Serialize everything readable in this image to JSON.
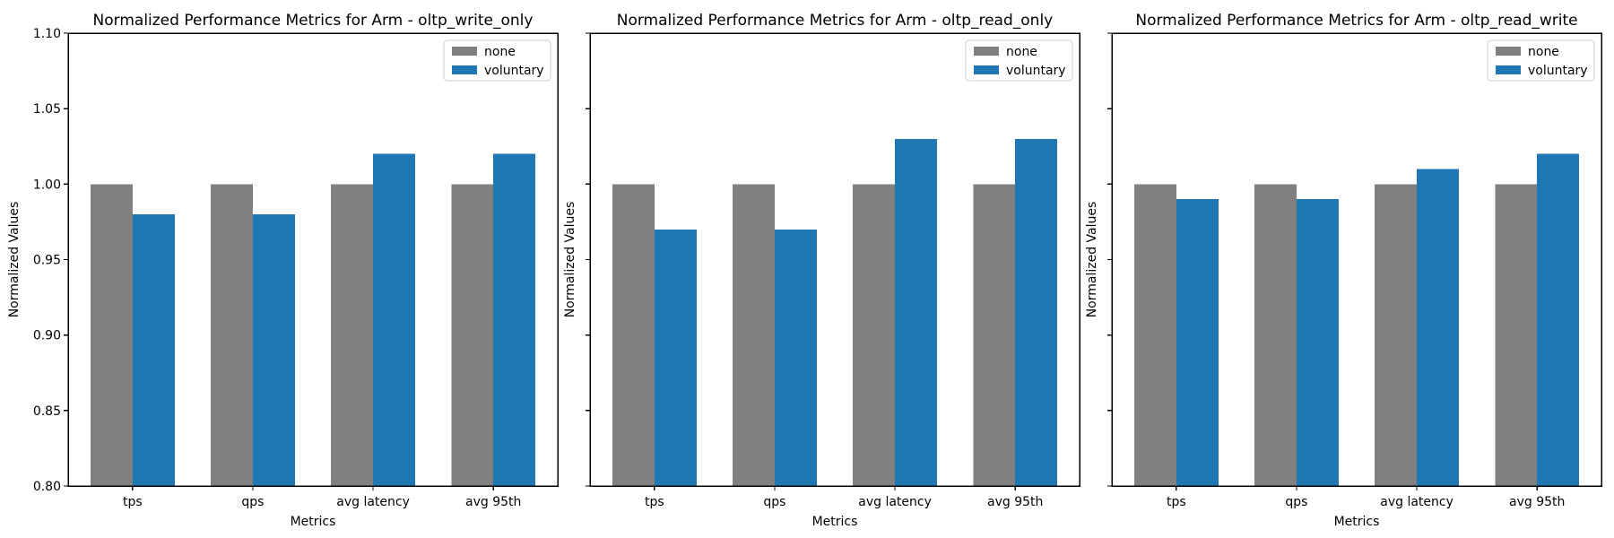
{
  "figure": {
    "background": "#ffffff",
    "text_color": "#000000",
    "axis_color": "#000000",
    "legend_border_color": "#cccccc"
  },
  "chart_data": [
    {
      "type": "bar",
      "title": "Normalized Performance Metrics for Arm - oltp_write_only",
      "xlabel": "Metrics",
      "ylabel": "Normalized Values",
      "categories": [
        "tps",
        "qps",
        "avg latency",
        "avg 95th"
      ],
      "series": [
        {
          "name": "none",
          "color": "#808080",
          "values": [
            1.0,
            1.0,
            1.0,
            1.0
          ]
        },
        {
          "name": "voluntary",
          "color": "#1f77b4",
          "values": [
            0.98,
            0.98,
            1.02,
            1.02
          ]
        }
      ],
      "ylim": [
        0.8,
        1.1
      ],
      "yticks": [
        0.8,
        0.85,
        0.9,
        0.95,
        1.0,
        1.05,
        1.1
      ],
      "ytick_labels_visible": true,
      "bar_width_fraction": 0.35,
      "legend_position": "upper right",
      "grid": false
    },
    {
      "type": "bar",
      "title": "Normalized Performance Metrics for Arm - oltp_read_only",
      "xlabel": "Metrics",
      "ylabel": "Normalized Values",
      "categories": [
        "tps",
        "qps",
        "avg latency",
        "avg 95th"
      ],
      "series": [
        {
          "name": "none",
          "color": "#808080",
          "values": [
            1.0,
            1.0,
            1.0,
            1.0
          ]
        },
        {
          "name": "voluntary",
          "color": "#1f77b4",
          "values": [
            0.97,
            0.97,
            1.03,
            1.03
          ]
        }
      ],
      "ylim": [
        0.8,
        1.1
      ],
      "yticks": [
        0.8,
        0.85,
        0.9,
        0.95,
        1.0,
        1.05,
        1.1
      ],
      "ytick_labels_visible": false,
      "bar_width_fraction": 0.35,
      "legend_position": "upper right",
      "grid": false
    },
    {
      "type": "bar",
      "title": "Normalized Performance Metrics for Arm - oltp_read_write",
      "xlabel": "Metrics",
      "ylabel": "Normalized Values",
      "categories": [
        "tps",
        "qps",
        "avg latency",
        "avg 95th"
      ],
      "series": [
        {
          "name": "none",
          "color": "#808080",
          "values": [
            1.0,
            1.0,
            1.0,
            1.0
          ]
        },
        {
          "name": "voluntary",
          "color": "#1f77b4",
          "values": [
            0.99,
            0.99,
            1.01,
            1.02
          ]
        }
      ],
      "ylim": [
        0.8,
        1.1
      ],
      "yticks": [
        0.8,
        0.85,
        0.9,
        0.95,
        1.0,
        1.05,
        1.1
      ],
      "ytick_labels_visible": false,
      "bar_width_fraction": 0.35,
      "legend_position": "upper right",
      "grid": false
    }
  ]
}
